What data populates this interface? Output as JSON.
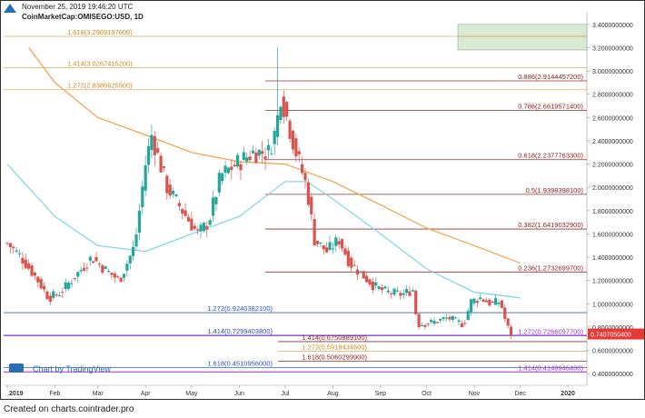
{
  "header": {
    "date": "November 25, 2019 19:46:20 UTC",
    "symbol": "CoinMarketCap:OMISEGO:USD, 1D"
  },
  "footer": "Created on charts.cointrader.pro",
  "attribution": "Chart by TradingView",
  "colors": {
    "price_up": "#26a69a",
    "price_down": "#d9534f",
    "ma_fast": "#80d4e0",
    "ma_slow": "#f5a04a",
    "fib_red": "#8b1a1a",
    "fib_orange": "#d08a1c",
    "fib_blue": "#2a4fbf",
    "fib_purple": "#9b30d9",
    "price_tag": "#e53935",
    "target_box": "#d8ead0"
  },
  "chart_data": {
    "type": "candlestick",
    "x_ticks": [
      "2019",
      "Feb",
      "Mar",
      "Apr",
      "May",
      "Jun",
      "Jul",
      "Aug",
      "Sep",
      "Oct",
      "Nov",
      "Dec",
      "2020"
    ],
    "ylim": [
      0.3,
      3.5
    ],
    "y_ticks": [
      "0.4000000000",
      "0.6000000000",
      "0.8000000000",
      "1.0000000000",
      "1.2000000000",
      "1.4000000000",
      "1.6000000000",
      "1.8000000000",
      "2.0000000000",
      "2.2000000000",
      "2.4000000000",
      "2.6000000000",
      "2.8000000000",
      "3.0000000000",
      "3.2000000000",
      "3.4000000000"
    ],
    "last_price": "0.7407050400",
    "price_path": [
      [
        "Jan 1",
        1.52
      ],
      [
        "Jan 10",
        1.4
      ],
      [
        "Jan 20",
        1.22
      ],
      [
        "Jan 28",
        1.05
      ],
      [
        "Feb 5",
        1.1
      ],
      [
        "Feb 15",
        1.25
      ],
      [
        "Feb 25",
        1.4
      ],
      [
        "Mar 5",
        1.3
      ],
      [
        "Mar 15",
        1.2
      ],
      [
        "Mar 25",
        1.5
      ],
      [
        "Apr 1",
        2.2
      ],
      [
        "Apr 5",
        2.45
      ],
      [
        "Apr 15",
        2.0
      ],
      [
        "Apr 25",
        1.8
      ],
      [
        "May 5",
        1.6
      ],
      [
        "May 12",
        1.7
      ],
      [
        "May 20",
        2.1
      ],
      [
        "May 30",
        2.2
      ],
      [
        "Jun 10",
        2.3
      ],
      [
        "Jun 20",
        2.3
      ],
      [
        "Jun 25",
        2.5
      ],
      [
        "Jun 28",
        2.8
      ],
      [
        "Jul 2",
        2.6
      ],
      [
        "Jul 8",
        2.3
      ],
      [
        "Jul 15",
        2.0
      ],
      [
        "Jul 20",
        1.55
      ],
      [
        "Jul 28",
        1.45
      ],
      [
        "Aug 5",
        1.55
      ],
      [
        "Aug 12",
        1.35
      ],
      [
        "Aug 20",
        1.25
      ],
      [
        "Aug 28",
        1.15
      ],
      [
        "Sep 5",
        1.1
      ],
      [
        "Sep 15",
        1.08
      ],
      [
        "Sep 22",
        1.12
      ],
      [
        "Sep 25",
        0.82
      ],
      [
        "Oct 5",
        0.84
      ],
      [
        "Oct 15",
        0.88
      ],
      [
        "Oct 25",
        0.82
      ],
      [
        "Oct 30",
        1.02
      ],
      [
        "Nov 5",
        1.05
      ],
      [
        "Nov 12",
        1.0
      ],
      [
        "Nov 18",
        1.02
      ],
      [
        "Nov 22",
        0.82
      ],
      [
        "Nov 25",
        0.74
      ]
    ],
    "price_high_spike": [
      "Jun 26",
      3.2
    ],
    "ma_fast_path": [
      [
        "Jan 1",
        2.2
      ],
      [
        "Feb 1",
        1.75
      ],
      [
        "Mar 1",
        1.5
      ],
      [
        "Apr 1",
        1.45
      ],
      [
        "May 1",
        1.6
      ],
      [
        "Jun 1",
        1.75
      ],
      [
        "Jul 1",
        2.05
      ],
      [
        "Jul 15",
        2.05
      ],
      [
        "Aug 1",
        1.9
      ],
      [
        "Sep 1",
        1.6
      ],
      [
        "Oct 1",
        1.3
      ],
      [
        "Nov 1",
        1.1
      ],
      [
        "Dec 1",
        1.05
      ]
    ],
    "ma_slow_path": [
      [
        "Jan 15",
        3.2
      ],
      [
        "Feb 1",
        2.9
      ],
      [
        "Mar 1",
        2.6
      ],
      [
        "Apr 1",
        2.45
      ],
      [
        "May 1",
        2.3
      ],
      [
        "Jun 1",
        2.22
      ],
      [
        "Jul 1",
        2.2
      ],
      [
        "Aug 1",
        2.05
      ],
      [
        "Sep 1",
        1.85
      ],
      [
        "Oct 1",
        1.65
      ],
      [
        "Nov 1",
        1.5
      ],
      [
        "Dec 1",
        1.35
      ]
    ],
    "fib_levels": [
      {
        "label": "1.618(3.2969197800)",
        "value": 3.2969,
        "color": "orange",
        "side": "left"
      },
      {
        "label": "1.414(3.0267415200)",
        "value": 3.0267,
        "color": "orange",
        "side": "left"
      },
      {
        "label": "1.272(2.8386625500)",
        "value": 2.8387,
        "color": "orange",
        "side": "left"
      },
      {
        "label": "0.886(2.9144457200)",
        "value": 2.9144,
        "color": "red",
        "side": "right"
      },
      {
        "label": "0.786(2.6619571400)",
        "value": 2.662,
        "color": "red",
        "side": "right"
      },
      {
        "label": "0.618(2.2377763300)",
        "value": 2.2378,
        "color": "red",
        "side": "right"
      },
      {
        "label": "0.5(1.9398398100)",
        "value": 1.9398,
        "color": "red",
        "side": "right"
      },
      {
        "label": "0.382(1.6419032900)",
        "value": 1.6419,
        "color": "red",
        "side": "right"
      },
      {
        "label": "0.236(1.2732699700)",
        "value": 1.2733,
        "color": "red",
        "side": "right"
      },
      {
        "label": "1.272(0.9240382100)",
        "value": 0.924,
        "color": "blue",
        "side": "mid"
      },
      {
        "label": "1.414(0.7299403800)",
        "value": 0.7299,
        "color": "blue",
        "side": "mid"
      },
      {
        "label": "1.618(0.4510956000)",
        "value": 0.4511,
        "color": "blue",
        "side": "mid"
      },
      {
        "label": "1.272(0.7266097700)",
        "value": 0.7266,
        "color": "purple",
        "side": "right"
      },
      {
        "label": "1.414(0.4148946400)",
        "value": 0.4149,
        "color": "purple",
        "side": "right"
      },
      {
        "label": "1.414(0.6750889100)",
        "value": 0.6751,
        "color": "red",
        "side": "lowmid"
      },
      {
        "label": "1.618(0.5060299900)",
        "value": 0.506,
        "color": "red",
        "side": "lowmid"
      },
      {
        "label": "1.272(0.5918434600)",
        "value": 0.5918,
        "color": "orange",
        "side": "lowmid"
      }
    ],
    "target_zone": [
      3.18,
      3.4
    ]
  }
}
